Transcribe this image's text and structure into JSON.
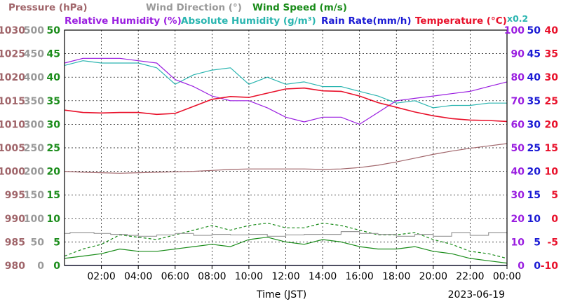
{
  "titles": {
    "pressure": "Pressure (hPa)",
    "wind_direction": "Wind Direction (°)",
    "wind_speed": "Wind Speed (m/s)",
    "relative_humidity": "Relative Humidity (%)",
    "absolute_humidity": "Absolute Humidity (g/m³)",
    "rain_rate": "Rain Rate(mm/h)",
    "temperature": "Temperature (°C)",
    "abs_hum_scale_note": "x0.2"
  },
  "colors": {
    "pressure": "#a0656a",
    "wind_direction": "#9a9a9a",
    "wind_speed": "#1a8c1a",
    "relative_humidity": "#9a1ee0",
    "absolute_humidity": "#2ab5b0",
    "rain_rate": "#1a1ad4",
    "temperature": "#e8102a"
  },
  "chart_data": {
    "type": "line",
    "xlabel": "Time (JST)",
    "date_label": "2023-06-19",
    "x_range_hours": [
      0,
      24
    ],
    "x_ticks": [
      "02:00",
      "04:00",
      "06:00",
      "08:00",
      "10:00",
      "12:00",
      "14:00",
      "16:00",
      "18:00",
      "20:00",
      "22:00",
      "00:00"
    ],
    "grid": true,
    "axes": {
      "pressure": {
        "range": [
          980,
          1030
        ],
        "ticks": [
          "1030",
          "1025",
          "1020",
          "1015",
          "1010",
          "1005",
          "1000",
          "995",
          "990",
          "985",
          "980"
        ]
      },
      "wind_direction": {
        "range": [
          0,
          500
        ],
        "ticks": [
          "500",
          "450",
          "400",
          "350",
          "300",
          "250",
          "200",
          "150",
          "100",
          "50",
          "0"
        ]
      },
      "wind_speed": {
        "range": [
          0,
          50
        ],
        "ticks": [
          "50",
          "45",
          "40",
          "35",
          "30",
          "25",
          "20",
          "15",
          "10",
          "5",
          "0"
        ]
      },
      "relative_humidity": {
        "range": [
          0,
          100
        ],
        "ticks": [
          "100",
          "90",
          "80",
          "70",
          "60",
          "50",
          "40",
          "30",
          "20",
          "10",
          "0"
        ]
      },
      "rain_rate": {
        "range": [
          0,
          50
        ],
        "ticks": [
          "50",
          "45",
          "40",
          "35",
          "30",
          "25",
          "20",
          "15",
          "10",
          "5",
          "0"
        ]
      },
      "temperature": {
        "range": [
          -10,
          40
        ],
        "ticks": [
          "40",
          "35",
          "30",
          "25",
          "20",
          "15",
          "10",
          "5",
          "0",
          "-5",
          "-10"
        ]
      }
    },
    "series": [
      {
        "key": "pressure",
        "axis": "pressure",
        "x": [
          0,
          1,
          2,
          3,
          4,
          5,
          6,
          7,
          8,
          9,
          10,
          11,
          12,
          13,
          14,
          15,
          16,
          17,
          18,
          19,
          20,
          21,
          22,
          23,
          24
        ],
        "y": [
          1000.0,
          999.8,
          999.7,
          999.6,
          999.7,
          999.8,
          999.9,
          1000.0,
          1000.2,
          1000.4,
          1000.5,
          1000.5,
          1000.5,
          1000.5,
          1000.4,
          1000.5,
          1000.8,
          1001.3,
          1002.0,
          1002.8,
          1003.6,
          1004.3,
          1004.9,
          1005.4,
          1005.9
        ]
      },
      {
        "key": "temperature",
        "axis": "temperature",
        "x": [
          0,
          1,
          2,
          3,
          4,
          5,
          6,
          7,
          8,
          9,
          10,
          11,
          12,
          13,
          14,
          15,
          16,
          17,
          18,
          19,
          20,
          21,
          22,
          23,
          24
        ],
        "y": [
          23.0,
          22.5,
          22.4,
          22.5,
          22.5,
          22.1,
          22.3,
          23.8,
          25.3,
          25.9,
          25.7,
          26.6,
          27.5,
          27.7,
          27.1,
          27.0,
          26.0,
          24.6,
          23.6,
          22.6,
          21.8,
          21.2,
          20.9,
          20.8,
          20.6
        ]
      },
      {
        "key": "relative_humidity",
        "axis": "relative_humidity",
        "x": [
          0,
          1,
          2,
          3,
          4,
          5,
          6,
          7,
          8,
          9,
          10,
          11,
          12,
          13,
          14,
          15,
          16,
          17,
          18,
          19,
          20,
          21,
          22,
          23,
          24
        ],
        "y": [
          86,
          88,
          88,
          88,
          87,
          86,
          79,
          76,
          72,
          70,
          70,
          67,
          63,
          61,
          63,
          63,
          60,
          65,
          70,
          71,
          72,
          73,
          74,
          76,
          78
        ]
      },
      {
        "key": "absolute_humidity",
        "axis": "relative_humidity",
        "x": [
          0,
          1,
          2,
          3,
          4,
          5,
          6,
          7,
          8,
          9,
          10,
          11,
          12,
          13,
          14,
          15,
          16,
          17,
          18,
          19,
          20,
          21,
          22,
          23,
          24
        ],
        "y": [
          85,
          87,
          86,
          86,
          86,
          84,
          77,
          81,
          83,
          84,
          77,
          80,
          77,
          78,
          76,
          76,
          74,
          72,
          69,
          70,
          67,
          68,
          68,
          69,
          69
        ]
      },
      {
        "key": "wind_direction",
        "axis": "wind_direction",
        "style": "step",
        "x": [
          0,
          0.3,
          1,
          1.6,
          2.5,
          3.4,
          4,
          5,
          6,
          7,
          8,
          9,
          10,
          11,
          12,
          13,
          14,
          15,
          16,
          17,
          18,
          19,
          20,
          21,
          22,
          23,
          24
        ],
        "y": [
          68,
          70,
          70,
          68,
          66,
          64,
          62,
          65,
          68,
          64,
          66,
          65,
          66,
          62,
          65,
          66,
          66,
          72,
          68,
          66,
          62,
          66,
          62,
          70,
          64,
          70,
          68
        ]
      },
      {
        "key": "wind_speed",
        "axis": "wind_speed",
        "style": "solid",
        "x": [
          0,
          1,
          2,
          3,
          4,
          5,
          6,
          7,
          8,
          9,
          10,
          11,
          12,
          13,
          14,
          15,
          16,
          17,
          18,
          19,
          20,
          21,
          22,
          23,
          24
        ],
        "y": [
          1.5,
          2.0,
          2.5,
          3.5,
          3.0,
          3.0,
          3.5,
          4.0,
          4.5,
          4.0,
          5.5,
          6.0,
          5.0,
          4.5,
          5.5,
          5.0,
          4.0,
          3.5,
          3.5,
          4.0,
          3.0,
          2.5,
          1.5,
          1.0,
          0.5
        ]
      },
      {
        "key": "wind_speed_gust",
        "axis": "wind_speed",
        "style": "dashed",
        "x": [
          0,
          1,
          2,
          3,
          4,
          5,
          6,
          7,
          8,
          9,
          10,
          11,
          12,
          13,
          14,
          15,
          16,
          17,
          18,
          19,
          20,
          21,
          22,
          23,
          24
        ],
        "y": [
          2.0,
          3.5,
          4.5,
          6.5,
          6.0,
          5.5,
          6.5,
          7.5,
          8.5,
          7.5,
          8.5,
          9.0,
          8.0,
          8.0,
          9.0,
          8.5,
          7.5,
          6.5,
          6.5,
          7.0,
          5.5,
          4.5,
          3.0,
          2.5,
          1.5
        ]
      },
      {
        "key": "rain_rate",
        "axis": "rain_rate",
        "x": [
          0,
          24
        ],
        "y": [
          0,
          0
        ]
      }
    ]
  }
}
